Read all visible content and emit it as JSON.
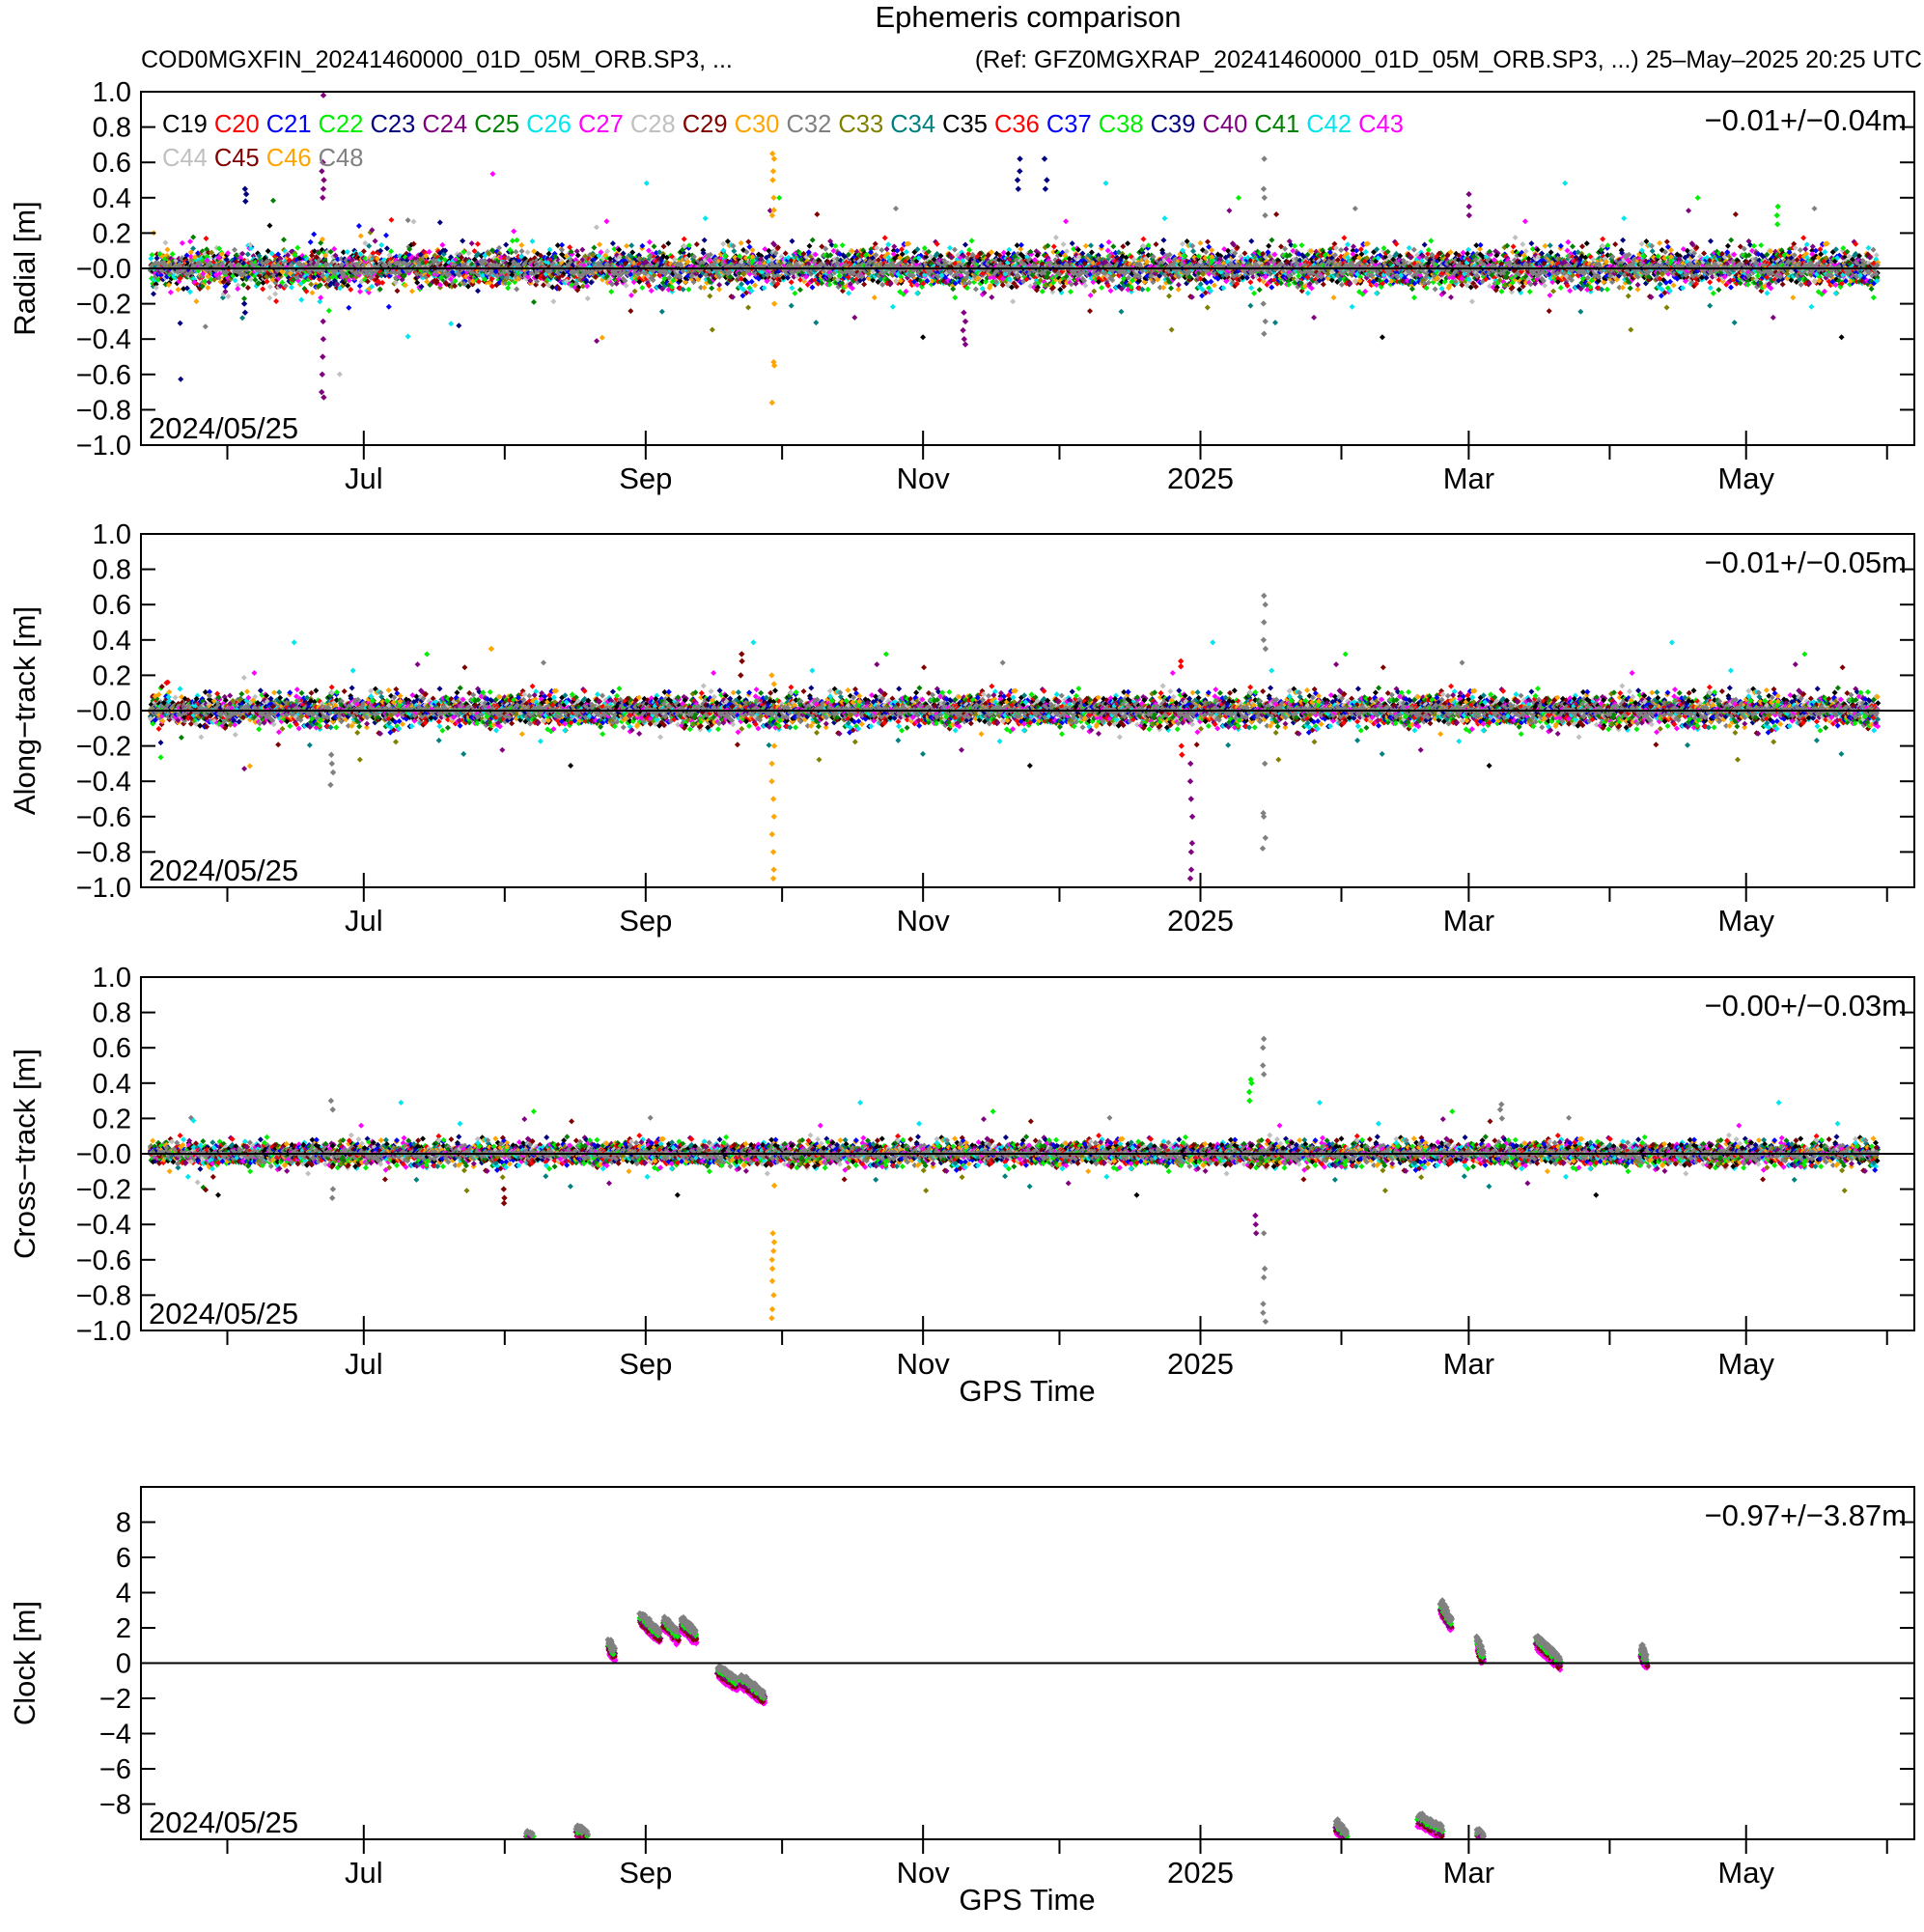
{
  "figure": {
    "title": "Ephemeris comparison",
    "subtitle_left": "COD0MGXFIN_20241460000_01D_05M_ORB.SP3, ...",
    "subtitle_right": "(Ref: GFZ0MGXRAP_20241460000_01D_05M_ORB.SP3, ...) 25–May–2025 20:25 UTC"
  },
  "chart_data": [
    {
      "type": "scatter",
      "panel": "radial",
      "ylabel": "Radial [m]",
      "xlabel": "",
      "ylim": [
        -1.0,
        1.0
      ],
      "yticks": [
        "1.0",
        "0.8",
        "0.6",
        "0.4",
        "0.2",
        "−0.0",
        "−0.2",
        "−0.4",
        "−0.6",
        "−0.8",
        "−1.0"
      ],
      "xlim": [
        "2024-05-13",
        "2025-06-07"
      ],
      "xticks": [
        "2024-07-01",
        "2024-09-01",
        "2024-11-01",
        "2025-01-01",
        "2025-03-01",
        "2025-05-01"
      ],
      "xticklabels": [
        "Jul",
        "Sep",
        "Nov",
        "2025",
        "Mar",
        "May"
      ],
      "date_label": "2024/05/25",
      "stats": "−0.01+/−0.04m",
      "zero_line": true,
      "legend": [
        "C19",
        "C20",
        "C21",
        "C22",
        "C23",
        "C24",
        "C25",
        "C26",
        "C27",
        "C28",
        "C29",
        "C30",
        "C32",
        "C33",
        "C34",
        "C35",
        "C36",
        "C37",
        "C38",
        "C39",
        "C40",
        "C41",
        "C42",
        "C43",
        "C44",
        "C45",
        "C46",
        "C48"
      ],
      "typical_spread_m": 0.1,
      "outliers": [
        {
          "x": "2024-09-29",
          "series": "C30",
          "y": [
            0.65,
            0.62,
            0.55,
            0.5,
            0.4,
            0.33,
            0.3,
            -0.2,
            -0.53,
            -0.55,
            -0.76
          ]
        },
        {
          "x": "2024-06-22",
          "series": "C24",
          "y": [
            0.98,
            0.6,
            0.55,
            0.5,
            0.45,
            0.4,
            -0.3,
            -0.4,
            -0.5,
            -0.6,
            -0.7,
            -0.73
          ]
        },
        {
          "x": "2025-01-15",
          "series": "C48",
          "y": [
            0.62,
            0.45,
            0.4,
            0.3,
            -0.2,
            -0.3,
            -0.37
          ]
        },
        {
          "x": "2024-11-22",
          "series": "C23",
          "y": [
            0.62,
            0.55,
            0.5,
            0.45
          ]
        },
        {
          "x": "2024-11-28",
          "series": "C23",
          "y": [
            0.62,
            0.5,
            0.45
          ]
        },
        {
          "x": "2024-06-05",
          "series": "C23",
          "y": [
            0.45,
            0.42,
            0.38,
            -0.2,
            -0.25
          ]
        },
        {
          "x": "2024-11-10",
          "series": "C24",
          "y": [
            -0.25,
            -0.3,
            -0.35,
            -0.4,
            -0.43
          ]
        },
        {
          "x": "2025-03-01",
          "series": "C24",
          "y": [
            0.42,
            0.35,
            0.3
          ]
        },
        {
          "x": "2025-05-08",
          "series": "C38",
          "y": [
            0.35,
            0.3,
            0.25
          ]
        }
      ]
    },
    {
      "type": "scatter",
      "panel": "along-track",
      "ylabel": "Along−track [m]",
      "xlabel": "",
      "ylim": [
        -1.0,
        1.0
      ],
      "yticks": [
        "1.0",
        "0.8",
        "0.6",
        "0.4",
        "0.2",
        "−0.0",
        "−0.2",
        "−0.4",
        "−0.6",
        "−0.8",
        "−1.0"
      ],
      "xlim": [
        "2024-05-13",
        "2025-06-07"
      ],
      "xticks": [
        "2024-07-01",
        "2024-09-01",
        "2024-11-01",
        "2025-01-01",
        "2025-03-01",
        "2025-05-01"
      ],
      "xticklabels": [
        "Jul",
        "Sep",
        "Nov",
        "2025",
        "Mar",
        "May"
      ],
      "date_label": "2024/05/25",
      "stats": "−0.01+/−0.05m",
      "zero_line": true,
      "typical_spread_m": 0.08,
      "outliers": [
        {
          "x": "2024-09-29",
          "series": "C30",
          "y": [
            0.2,
            0.15,
            -0.2,
            -0.3,
            -0.4,
            -0.5,
            -0.6,
            -0.7,
            -0.8,
            -0.9,
            -0.95
          ]
        },
        {
          "x": "2024-12-30",
          "series": "C24",
          "y": [
            -0.3,
            -0.4,
            -0.5,
            -0.6,
            -0.75,
            -0.8,
            -0.9,
            -0.95
          ]
        },
        {
          "x": "2025-01-15",
          "series": "C48",
          "y": [
            0.65,
            0.6,
            0.5,
            0.4,
            0.35,
            -0.3,
            -0.58,
            -0.6,
            -0.72,
            -0.78
          ]
        },
        {
          "x": "2024-06-24",
          "series": "C48",
          "y": [
            -0.25,
            -0.3,
            -0.35,
            -0.42
          ]
        },
        {
          "x": "2024-09-22",
          "series": "C29",
          "y": [
            0.32,
            0.28,
            0.2
          ]
        },
        {
          "x": "2024-07-29",
          "series": "C30",
          "y": [
            0.35
          ]
        },
        {
          "x": "2024-12-28",
          "series": "C36",
          "y": [
            0.28,
            0.25,
            -0.2,
            -0.25
          ]
        }
      ]
    },
    {
      "type": "scatter",
      "panel": "cross-track",
      "ylabel": "Cross−track [m]",
      "xlabel": "GPS Time",
      "ylim": [
        -1.0,
        1.0
      ],
      "yticks": [
        "1.0",
        "0.8",
        "0.6",
        "0.4",
        "0.2",
        "−0.0",
        "−0.2",
        "−0.4",
        "−0.6",
        "−0.8",
        "−1.0"
      ],
      "xlim": [
        "2024-05-13",
        "2025-06-07"
      ],
      "xticks": [
        "2024-07-01",
        "2024-09-01",
        "2024-11-01",
        "2025-01-01",
        "2025-03-01",
        "2025-05-01"
      ],
      "xticklabels": [
        "Jul",
        "Sep",
        "Nov",
        "2025",
        "Mar",
        "May"
      ],
      "date_label": "2024/05/25",
      "stats": "−0.00+/−0.03m",
      "zero_line": true,
      "typical_spread_m": 0.06,
      "outliers": [
        {
          "x": "2024-09-29",
          "series": "C30",
          "y": [
            -0.18,
            -0.45,
            -0.5,
            -0.55,
            -0.6,
            -0.65,
            -0.72,
            -0.8,
            -0.88,
            -0.93
          ]
        },
        {
          "x": "2025-01-15",
          "series": "C48",
          "y": [
            0.65,
            0.6,
            0.5,
            0.45,
            -0.45,
            -0.65,
            -0.7,
            -0.85,
            -0.9,
            -0.95
          ]
        },
        {
          "x": "2025-01-12",
          "series": "C38",
          "y": [
            0.42,
            0.4,
            0.35,
            0.3
          ]
        },
        {
          "x": "2025-01-13",
          "series": "C24",
          "y": [
            -0.35,
            -0.4,
            -0.45
          ]
        },
        {
          "x": "2024-06-24",
          "series": "C48",
          "y": [
            0.3,
            0.25,
            -0.2,
            -0.25
          ]
        },
        {
          "x": "2024-08-01",
          "series": "C45",
          "y": [
            -0.2,
            -0.25,
            -0.28
          ]
        },
        {
          "x": "2025-03-08",
          "series": "C48",
          "y": [
            0.28,
            0.25,
            0.2
          ]
        }
      ]
    },
    {
      "type": "scatter",
      "panel": "clock",
      "ylabel": "Clock [m]",
      "xlabel": "GPS Time",
      "ylim": [
        -10,
        10
      ],
      "yticks": [
        "8",
        "6",
        "4",
        "2",
        "0",
        "−2",
        "−4",
        "−6",
        "−8"
      ],
      "xlim": [
        "2024-05-13",
        "2025-06-07"
      ],
      "xticks": [
        "2024-07-01",
        "2024-09-01",
        "2024-11-01",
        "2025-01-01",
        "2025-03-01",
        "2025-05-01"
      ],
      "xticklabels": [
        "Jul",
        "Sep",
        "Nov",
        "2025",
        "Mar",
        "May"
      ],
      "date_label": "2024/05/25",
      "stats": "−0.97+/−3.87m",
      "zero_line": true,
      "clusters": [
        {
          "x_start": "2024-08-24",
          "x_end": "2024-08-25",
          "y_start": 1.0,
          "y_end": 0.5
        },
        {
          "x_start": "2024-08-31",
          "x_end": "2024-09-04",
          "y_start": 2.5,
          "y_end": 1.5
        },
        {
          "x_start": "2024-09-05",
          "x_end": "2024-09-08",
          "y_start": 2.3,
          "y_end": 1.5
        },
        {
          "x_start": "2024-09-09",
          "x_end": "2024-09-12",
          "y_start": 2.2,
          "y_end": 1.5
        },
        {
          "x_start": "2024-09-17",
          "x_end": "2024-09-21",
          "y_start": -0.5,
          "y_end": -1.2
        },
        {
          "x_start": "2024-09-22",
          "x_end": "2024-09-27",
          "y_start": -1.0,
          "y_end": -2.0
        },
        {
          "x_start": "2024-08-06",
          "x_end": "2024-08-07",
          "y_start": -9.9,
          "y_end": -10.0
        },
        {
          "x_start": "2024-08-17",
          "x_end": "2024-08-19",
          "y_start": -9.6,
          "y_end": -9.9
        },
        {
          "x_start": "2025-01-31",
          "x_end": "2025-02-02",
          "y_start": -9.3,
          "y_end": -9.9
        },
        {
          "x_start": "2025-02-18",
          "x_end": "2025-02-23",
          "y_start": -8.9,
          "y_end": -9.6
        },
        {
          "x_start": "2025-02-23",
          "x_end": "2025-02-25",
          "y_start": 3.2,
          "y_end": 2.2
        },
        {
          "x_start": "2025-03-03",
          "x_end": "2025-03-04",
          "y_start": 1.2,
          "y_end": 0.3
        },
        {
          "x_start": "2025-03-03",
          "x_end": "2025-03-04",
          "y_start": -9.8,
          "y_end": -10.0
        },
        {
          "x_start": "2025-03-16",
          "x_end": "2025-03-21",
          "y_start": 1.2,
          "y_end": 0.0
        },
        {
          "x_start": "2025-04-08",
          "x_end": "2025-04-09",
          "y_start": 0.7,
          "y_end": 0.0
        }
      ]
    }
  ],
  "colors": {
    "C19": "#000000",
    "C20": "#ff0000",
    "C21": "#0000ff",
    "C22": "#00ee00",
    "C23": "#000080",
    "C24": "#800080",
    "C25": "#008000",
    "C26": "#00e5ee",
    "C27": "#ff00ff",
    "C28": "#c0c0c0",
    "C29": "#800000",
    "C30": "#ffa500",
    "C32": "#808080",
    "C33": "#808000",
    "C34": "#008080",
    "C35": "#000000",
    "C36": "#ff0000",
    "C37": "#0000ff",
    "C38": "#00ee00",
    "C39": "#000080",
    "C40": "#800080",
    "C41": "#008000",
    "C42": "#00e5ee",
    "C43": "#ff00ff",
    "C44": "#c0c0c0",
    "C45": "#800000",
    "C46": "#ffa500",
    "C48": "#808080"
  }
}
